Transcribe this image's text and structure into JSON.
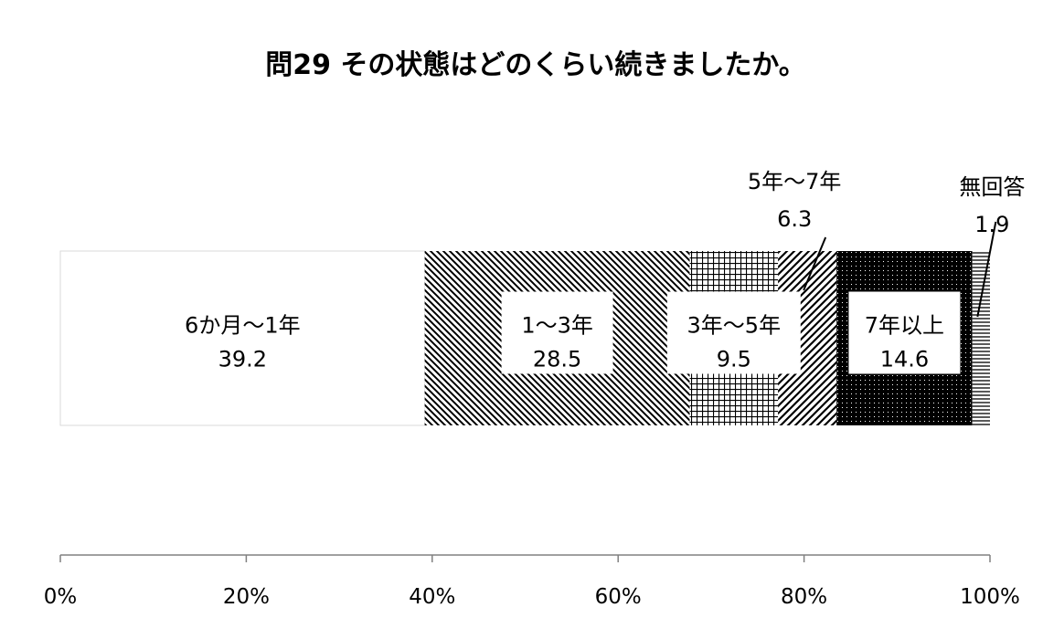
{
  "chart_data": {
    "type": "bar",
    "orientation": "horizontal",
    "stacked": "100%",
    "title": "問29 その状態はどのくらい続きましたか。",
    "categories": [
      ""
    ],
    "series": [
      {
        "name": "6か月～1年",
        "values": [
          39.2
        ],
        "pattern": "white"
      },
      {
        "name": "1～3年",
        "values": [
          28.5
        ],
        "pattern": "diagonal-down"
      },
      {
        "name": "3年～5年",
        "values": [
          9.5
        ],
        "pattern": "grid"
      },
      {
        "name": "5年～7年",
        "values": [
          6.3
        ],
        "pattern": "diagonal-up"
      },
      {
        "name": "7年以上",
        "values": [
          14.6
        ],
        "pattern": "dotted-black"
      },
      {
        "name": "無回答",
        "values": [
          1.9
        ],
        "pattern": "horizontal-lines"
      }
    ],
    "xlim": [
      0,
      100
    ],
    "xticks": [
      "0%",
      "20%",
      "40%",
      "60%",
      "80%",
      "100%"
    ],
    "grid": false,
    "legend": "none"
  }
}
